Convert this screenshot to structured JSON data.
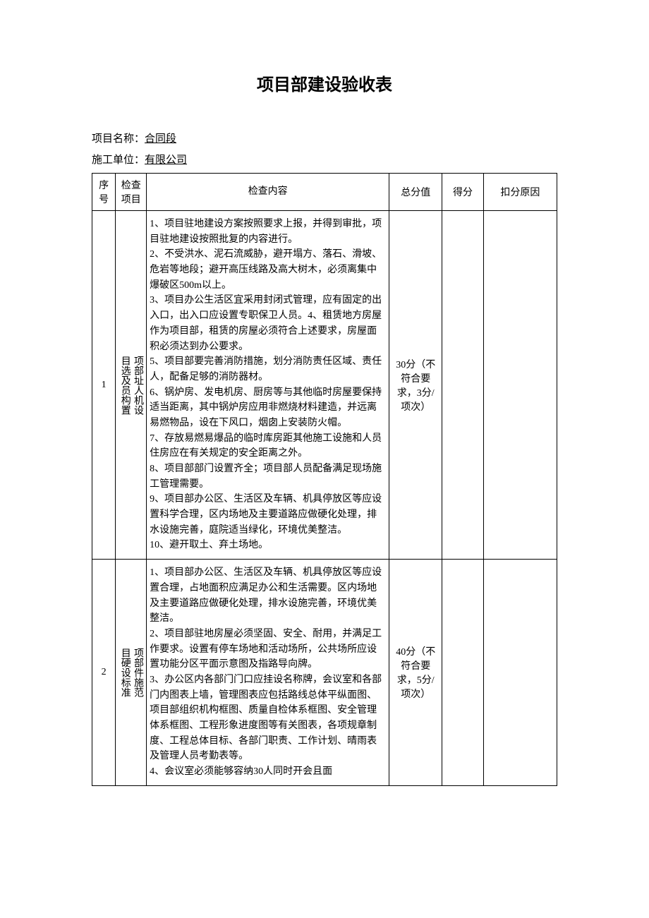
{
  "title": "项目部建设验收表",
  "meta": {
    "project_label": "项目名称：",
    "project_value": "合同段",
    "contractor_label": "施工单位：",
    "contractor_value": "有限公司"
  },
  "headers": {
    "num": "序号",
    "item": "检查项目",
    "content": "检查内容",
    "total": "总分值",
    "score": "得分",
    "reason": "扣分原因"
  },
  "rows": [
    {
      "num": "1",
      "item_cols": [
        "目选及员构置",
        "项部址人机设"
      ],
      "content": "1、项目驻地建设方案按照要求上报，并得到审批，项目驻地建设按照批复的内容进行。\n2、不受洪水、泥石流威胁，避开塌方、落石、滑坡、危岩等地段；避开高压线路及高大树木，必须离集中爆破区500m以上。\n3、项目办公生活区宜采用封闭式管理，应有固定的出入口，出入口应设置专职保卫人员。4、租赁地方房屋作为项目部，租赁的房屋必须符合上述要求，房屋面积必须达到办公要求。\n5、项目部要完善消防措施，划分消防责任区域、责任人，配备足够的消防器材。\n6、锅炉房、发电机房、厨房等与其他临时房屋要保持适当距离，其中锅炉房应用非燃烧材料建造，并远离易燃物品，设在下风口，烟囱上安装防火帽。\n7、存放易燃易爆品的临时库房距其他施工设施和人员住房应在有关规定的安全距离之外。\n8、项目部部门设置齐全；项目部人员配备满足现场施工管理需要。\n9、项目部办公区、生活区及车辆、机具停放区等应设置科学合理，区内场地及主要道路应做硬化处理，排水设施完善，庭院适当绿化，环境优美整洁。\n10、避开取土、弃土场地。",
      "total": "30分（不符合要求，3分/项次）",
      "score": "",
      "reason": ""
    },
    {
      "num": "2",
      "item_cols": [
        "目硬设标准",
        "项部件施范"
      ],
      "content": "1、项目部办公区、生活区及车辆、机具停放区等应设置合理，占地面积应满足办公和生活需要。区内场地及主要道路应做硬化处理，排水设施完善，环境优美整洁。\n2、项目部驻地房屋必须坚固、安全、耐用，并满足工作要求。设置有停车场地和活动场所，公共场所应设置功能分区平面示意图及指路导向牌。\n3、办公区内各部门门口应挂设名称牌，会议室和各部门内图表上墙，管理图表应包括路线总体平纵面图、项目部组织机构框图、质量自检体系框图、安全管理体系框图、工程形象进度图等有关图表，各项规章制度、工程总体目标、各部门职责、工作计划、晴雨表及管理人员考勤表等。\n4、会议室必须能够容纳30人同时开会且面",
      "total": "40分（不符合要求，5分/项次）",
      "score": "",
      "reason": ""
    }
  ]
}
